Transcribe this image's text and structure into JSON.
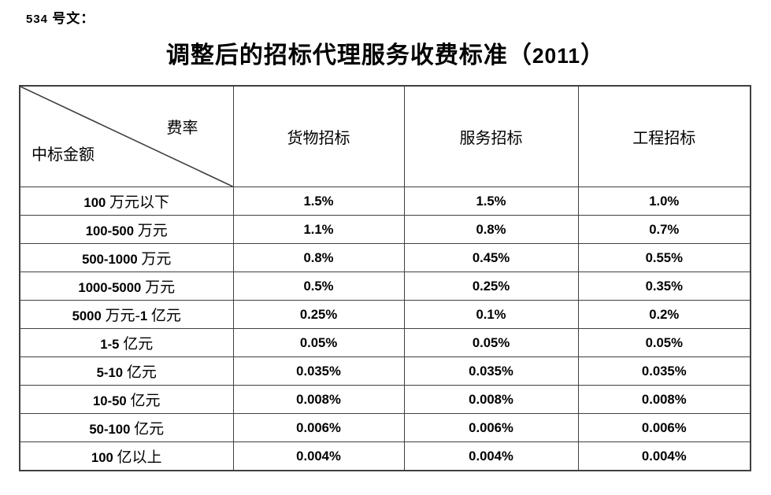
{
  "doc_label": "534 号文：",
  "title": "调整后的招标代理服务收费标准（2011）",
  "table": {
    "corner": {
      "top_right": "费率",
      "bottom_left": "中标金额"
    },
    "columns": [
      "货物招标",
      "服务招标",
      "工程招标"
    ],
    "rows": [
      {
        "label": "100 万元以下",
        "values": [
          "1.5%",
          "1.5%",
          "1.0%"
        ]
      },
      {
        "label": "100-500 万元",
        "values": [
          "1.1%",
          "0.8%",
          "0.7%"
        ]
      },
      {
        "label": "500-1000 万元",
        "values": [
          "0.8%",
          "0.45%",
          "0.55%"
        ]
      },
      {
        "label": "1000-5000 万元",
        "values": [
          "0.5%",
          "0.25%",
          "0.35%"
        ]
      },
      {
        "label": "5000 万元-1 亿元",
        "values": [
          "0.25%",
          "0.1%",
          "0.2%"
        ]
      },
      {
        "label": "1-5 亿元",
        "values": [
          "0.05%",
          "0.05%",
          "0.05%"
        ]
      },
      {
        "label": "5-10 亿元",
        "values": [
          "0.035%",
          "0.035%",
          "0.035%"
        ]
      },
      {
        "label": "10-50 亿元",
        "values": [
          "0.008%",
          "0.008%",
          "0.008%"
        ]
      },
      {
        "label": "50-100 亿元",
        "values": [
          "0.006%",
          "0.006%",
          "0.006%"
        ]
      },
      {
        "label": "100 亿以上",
        "values": [
          "0.004%",
          "0.004%",
          "0.004%"
        ]
      }
    ]
  },
  "colors": {
    "border": "#404040",
    "text": "#000000",
    "background": "#ffffff"
  }
}
